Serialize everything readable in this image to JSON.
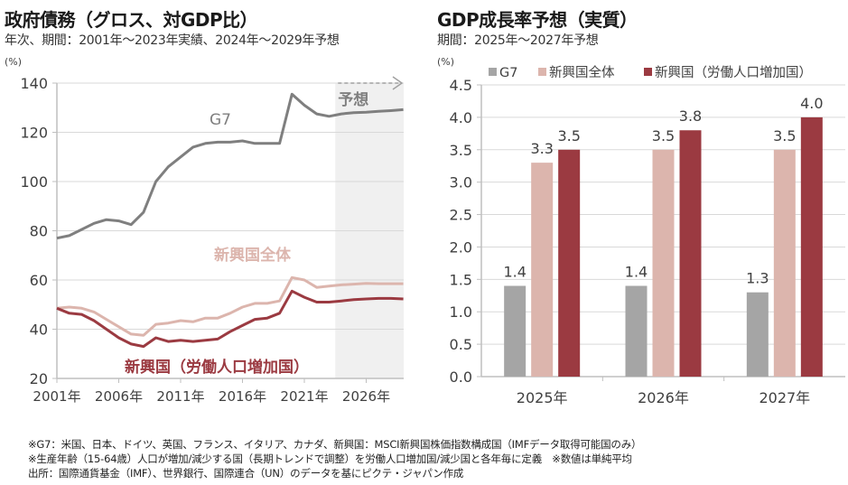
{
  "left": {
    "title": "政府債務（グロス、対GDP比）",
    "subtitle": "年次、期間：2001年～2023年実績、2024年～2029年予想",
    "unit": "(%)"
  },
  "right": {
    "title": "GDP成長率予想（実質）",
    "subtitle": "期間：2025年～2027年予想",
    "unit": "(%)"
  },
  "colors": {
    "g7": "#7f7f7f",
    "g7_bar": "#a5a5a5",
    "em_all": "#dcb5ad",
    "em_labor": "#9b3a41",
    "forecast_bg": "#f0f0f0",
    "grid": "#d9d9d9"
  },
  "chart_data": [
    {
      "type": "line",
      "title": "政府債務（グロス、対GDP比）",
      "ylabel": "(%)",
      "ylim": [
        20,
        140
      ],
      "yticks": [
        20,
        40,
        60,
        80,
        100,
        120,
        140
      ],
      "x": [
        2001,
        2002,
        2003,
        2004,
        2005,
        2006,
        2007,
        2008,
        2009,
        2010,
        2011,
        2012,
        2013,
        2014,
        2015,
        2016,
        2017,
        2018,
        2019,
        2020,
        2021,
        2022,
        2023,
        2024,
        2025,
        2026,
        2027,
        2028,
        2029
      ],
      "xticks": [
        2001,
        2006,
        2011,
        2016,
        2021,
        2026
      ],
      "xtick_labels": [
        "2001年",
        "2006年",
        "2011年",
        "2016年",
        "2021年",
        "2026年"
      ],
      "forecast_start": 2024,
      "forecast_label": "予想",
      "grid": true,
      "series": [
        {
          "name": "G7",
          "label": "G7",
          "values": [
            77,
            78,
            80.5,
            83,
            84.5,
            84,
            82.5,
            87.5,
            100,
            106,
            110,
            114,
            115.5,
            116,
            116,
            116.5,
            115.5,
            115.5,
            115.5,
            135.5,
            131,
            127.5,
            126.5,
            127.5,
            128,
            128.2,
            128.5,
            128.8,
            129.2
          ]
        },
        {
          "name": "新興国全体",
          "label": "新興国全体",
          "values": [
            48.5,
            49,
            48.5,
            47,
            44,
            41,
            38,
            37.5,
            42,
            42.5,
            43.5,
            43,
            44.5,
            44.5,
            46.5,
            49,
            50.5,
            50.5,
            51.5,
            61,
            60,
            57,
            57.5,
            58,
            58.3,
            58.6,
            58.5,
            58.5,
            58.5
          ]
        },
        {
          "name": "新興国（労働人口増加国）",
          "label": "新興国（労働人口増加国）",
          "values": [
            48.5,
            46.5,
            46,
            43.5,
            40,
            36.5,
            34,
            33,
            36.5,
            35,
            35.5,
            35,
            35.5,
            36,
            39,
            41.5,
            44,
            44.5,
            46.5,
            55.5,
            53,
            51,
            51,
            51.5,
            52,
            52.3,
            52.5,
            52.5,
            52.3
          ]
        }
      ]
    },
    {
      "type": "bar",
      "title": "GDP成長率予想（実質）",
      "ylabel": "(%)",
      "ylim": [
        0,
        4.5
      ],
      "yticks": [
        "0.0",
        "0.5",
        "1.0",
        "1.5",
        "2.0",
        "2.5",
        "3.0",
        "3.5",
        "4.0",
        "4.5"
      ],
      "categories": [
        "2025年",
        "2026年",
        "2027年"
      ],
      "legend_position": "top",
      "grid": true,
      "series": [
        {
          "name": "G7",
          "values": [
            1.4,
            1.4,
            1.3
          ],
          "labels": [
            "1.4",
            "1.4",
            "1.3"
          ]
        },
        {
          "name": "新興国全体",
          "values": [
            3.3,
            3.5,
            3.5
          ],
          "labels": [
            "3.3",
            "3.5",
            "3.5"
          ]
        },
        {
          "name": "新興国（労働人口増加国）",
          "values": [
            3.5,
            3.8,
            4.0
          ],
          "labels": [
            "3.5",
            "3.8",
            "4.0"
          ]
        }
      ]
    }
  ],
  "notes": [
    "※G7：米国、日本、ドイツ、英国、フランス、イタリア、カナダ、新興国：MSCI新興国株価指数構成国（IMFデータ取得可能国のみ）",
    "※生産年齢（15-64歳）人口が増加/減少する国（長期トレンドで調整）を労働人口増加国/減少国と各年毎に定義　※数値は単純平均",
    "出所：国際通貨基金（IMF）、世界銀行、国際連合（UN）のデータを基にピクテ・ジャパン作成"
  ]
}
